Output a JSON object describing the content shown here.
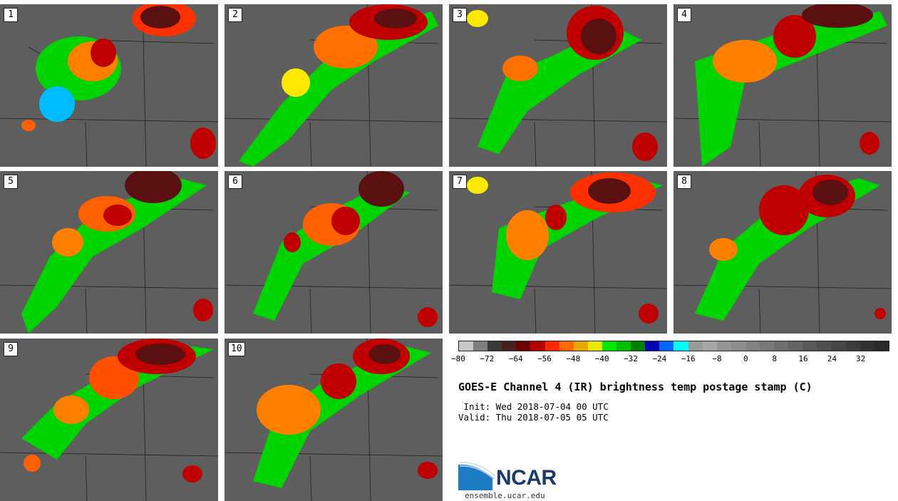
{
  "title": "GOES-E Channel 4 (IR) brightness temp postage stamp (C)",
  "init_line": " Init: Wed 2018-07-04 00 UTC",
  "valid_line": "Valid: Thu 2018-07-05 05 UTC",
  "logo": {
    "text": "NCAR",
    "url_text": "ensemble.ucar.edu",
    "icon": "ncar-logo-icon"
  },
  "panels": [
    {
      "label": "1"
    },
    {
      "label": "2"
    },
    {
      "label": "3"
    },
    {
      "label": "4"
    },
    {
      "label": "5"
    },
    {
      "label": "6"
    },
    {
      "label": "7"
    },
    {
      "label": "8"
    },
    {
      "label": "9"
    },
    {
      "label": "10"
    }
  ],
  "colorbar": {
    "colors": [
      "#c8c8c8",
      "#7f7f7f",
      "#3a3a3a",
      "#4a1f1f",
      "#6e0000",
      "#b40000",
      "#ff2a00",
      "#ff6a00",
      "#e8a600",
      "#e8e800",
      "#00e800",
      "#00c000",
      "#008000",
      "#0000b4",
      "#0064ff",
      "#00ffff",
      "#9a9a9a",
      "#a6a6a6",
      "#969696",
      "#8c8c8c",
      "#828282",
      "#787878",
      "#6e6e6e",
      "#646464",
      "#5a5a5a",
      "#505050",
      "#464646",
      "#3c3c3c",
      "#323232",
      "#2a2a2a"
    ],
    "ticks": [
      "−80",
      "−72",
      "−64",
      "−56",
      "−48",
      "−40",
      "−32",
      "−24",
      "−16",
      "−8",
      "0",
      "8",
      "16",
      "24",
      "32"
    ]
  }
}
